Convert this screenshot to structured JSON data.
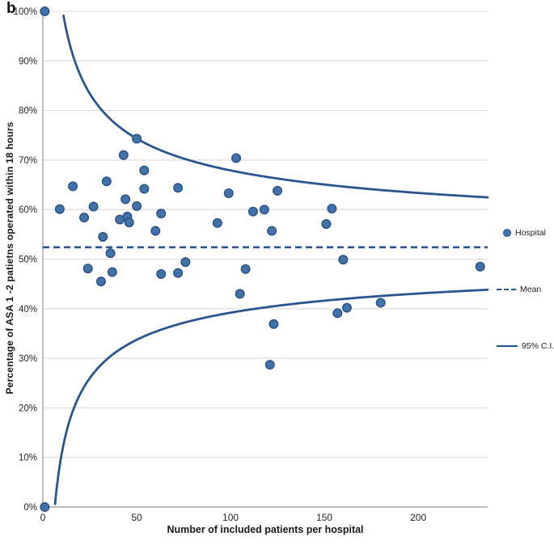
{
  "figure": {
    "panel_label": "b"
  },
  "chart_data": {
    "type": "scatter",
    "title": "",
    "xlabel": "Number of included patients per hospital",
    "ylabel": "Percentage of ASA 1 -2 patietns operated  within 18 hours",
    "xlim": [
      0,
      237
    ],
    "ylim": [
      0,
      100
    ],
    "x_ticks": [
      0,
      50,
      100,
      150,
      200
    ],
    "y_ticks_percent": [
      0,
      10,
      20,
      30,
      40,
      50,
      60,
      70,
      80,
      90,
      100
    ],
    "y_tick_suffix": "%",
    "grid": "horizontal",
    "legend": {
      "position": "right",
      "entries": [
        {
          "label": "Hospital",
          "marker": "dot"
        },
        {
          "label": "Mean",
          "marker": "dashed-line"
        },
        {
          "label": "95% C.I.",
          "marker": "solid-line"
        }
      ]
    },
    "mean_percent": 52.4,
    "ci": {
      "center_percent": 52.4,
      "upper_k": 1.55,
      "lower_k": 1.32,
      "x_end": 237
    },
    "series": [
      {
        "name": "Hospital",
        "points": [
          [
            1,
            100
          ],
          [
            1,
            0
          ],
          [
            50,
            74.3
          ],
          [
            43,
            71.0
          ],
          [
            54,
            67.9
          ],
          [
            34,
            65.7
          ],
          [
            16,
            64.7
          ],
          [
            54,
            64.2
          ],
          [
            72,
            64.4
          ],
          [
            44,
            62.1
          ],
          [
            50,
            60.7
          ],
          [
            9,
            60.1
          ],
          [
            27,
            60.6
          ],
          [
            22,
            58.4
          ],
          [
            41,
            58.0
          ],
          [
            45,
            58.6
          ],
          [
            46,
            57.4
          ],
          [
            63,
            59.2
          ],
          [
            60,
            55.7
          ],
          [
            32,
            54.5
          ],
          [
            36,
            51.2
          ],
          [
            24,
            48.1
          ],
          [
            37,
            47.4
          ],
          [
            31,
            45.5
          ],
          [
            63,
            47.0
          ],
          [
            72,
            47.2
          ],
          [
            76,
            49.4
          ],
          [
            103,
            70.4
          ],
          [
            99,
            63.3
          ],
          [
            125,
            63.8
          ],
          [
            112,
            59.6
          ],
          [
            118,
            60.0
          ],
          [
            154,
            60.2
          ],
          [
            93,
            57.3
          ],
          [
            151,
            57.1
          ],
          [
            122,
            55.7
          ],
          [
            160,
            49.9
          ],
          [
            108,
            48.0
          ],
          [
            105,
            43.0
          ],
          [
            123,
            36.9
          ],
          [
            121,
            28.7
          ],
          [
            157,
            39.1
          ],
          [
            162,
            40.2
          ],
          [
            180,
            41.2
          ],
          [
            233,
            48.5
          ]
        ]
      }
    ],
    "colors": {
      "point_fill": "#4272a7",
      "point_stroke": "#2a5183",
      "line": "#2b5591",
      "grid": "#d9d9d9",
      "axis": "#a6a6a6",
      "tick_text": "#262626"
    }
  }
}
